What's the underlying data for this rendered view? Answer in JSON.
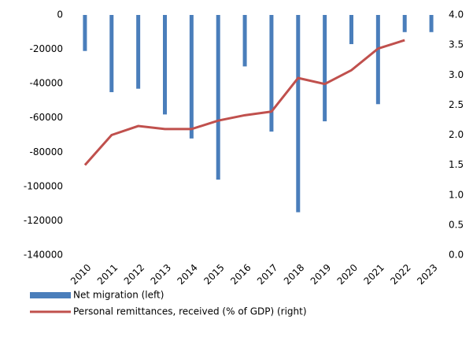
{
  "chart_data": {
    "type": "bar_line",
    "categories": [
      "2010",
      "2011",
      "2012",
      "2013",
      "2014",
      "2015",
      "2016",
      "2017",
      "2018",
      "2019",
      "2020",
      "2021",
      "2022",
      "2023"
    ],
    "series": [
      {
        "name": "Net migration (left)",
        "color": "#4a7ebb",
        "type": "bar",
        "values": [
          -21000,
          -45000,
          -43000,
          -58000,
          -72000,
          -96000,
          -30000,
          -68000,
          -115000,
          -62000,
          -17000,
          -52000,
          -10000,
          -10000
        ]
      },
      {
        "name": "Personal remittances, received (% of GDP) (right)",
        "color": "#c0504d",
        "type": "line",
        "axis": "y2",
        "values": [
          1.5,
          2.0,
          2.15,
          2.1,
          2.1,
          2.24,
          2.33,
          2.39,
          2.95,
          2.85,
          3.08,
          3.44,
          3.58,
          null
        ]
      }
    ],
    "ylim": [
      -140000,
      0
    ],
    "yticks": [
      0,
      -20000,
      -40000,
      -60000,
      -80000,
      -100000,
      -120000,
      -140000
    ],
    "y2lim": [
      0,
      4
    ],
    "y2ticks": [
      {
        "value": 0,
        "label": "0.0"
      },
      0.5,
      {
        "value": 1,
        "label": "1.0"
      },
      1.5,
      {
        "value": 2,
        "label": "2.0"
      },
      2.5,
      {
        "value": 3,
        "label": "3.0"
      },
      3.5,
      {
        "value": 4,
        "label": "4.0"
      }
    ],
    "legend": "bottom"
  }
}
